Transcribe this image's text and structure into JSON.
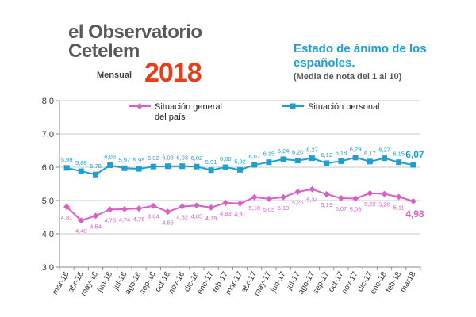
{
  "brand": {
    "line1": "el Observatorio",
    "line2": "Cetelem",
    "edition": "Mensual",
    "year": "2018",
    "colors": {
      "text": "#595959",
      "year": "#e2401c"
    }
  },
  "chart_data": {
    "type": "line",
    "title": "Estado de ánimo de los españoles.",
    "subtitle": "(Media de nota del 1 al 10)",
    "categories": [
      "mar-16",
      "abr-16",
      "may-16",
      "jun-16",
      "jul-16",
      "ago-16",
      "sep-16",
      "oct-16",
      "nov-16",
      "dic-16",
      "ene-17",
      "feb-17",
      "mar-17",
      "abr-17",
      "may-17",
      "jun-17",
      "jul-17",
      "ago-17",
      "sep-17",
      "oct-17",
      "nov-17",
      "dic-17",
      "ene-18",
      "feb-18",
      "mar18"
    ],
    "ylim": [
      3.0,
      8.0
    ],
    "yticks": [
      "3,0",
      "4,0",
      "5,0",
      "6,0",
      "7,0",
      "8,0"
    ],
    "grid": true,
    "series": [
      {
        "name": "Situación general del país",
        "name_lines": [
          "Situación general",
          "del país"
        ],
        "color": "#d95fc8",
        "marker": "diamond",
        "values": [
          4.81,
          4.4,
          4.54,
          4.73,
          4.74,
          4.76,
          4.84,
          4.66,
          4.82,
          4.85,
          4.79,
          4.93,
          4.91,
          5.1,
          5.05,
          5.1,
          5.26,
          5.34,
          5.19,
          5.07,
          5.06,
          5.22,
          5.2,
          5.11,
          4.98
        ],
        "labels": [
          "4,81",
          "4,40",
          "4,54",
          "4,73",
          "4,74",
          "4,76",
          "4,84",
          "4,66",
          "4,82",
          "4,85",
          "4,79",
          "4,93",
          "4,91",
          "5,10",
          "5,05",
          "5,10",
          "5,26",
          "5,34",
          "5,19",
          "5,07",
          "5,06",
          "5,22",
          "5,20",
          "5,11",
          "4,98"
        ]
      },
      {
        "name": "Situación personal",
        "name_lines": [
          "Situación personal"
        ],
        "color": "#1e9fd0",
        "marker": "square",
        "values": [
          5.98,
          5.88,
          5.78,
          6.06,
          5.97,
          5.95,
          6.02,
          6.03,
          6.03,
          6.02,
          5.91,
          6.0,
          5.92,
          6.07,
          6.15,
          6.24,
          6.2,
          6.27,
          6.12,
          6.18,
          6.29,
          6.17,
          6.27,
          6.15,
          6.07
        ],
        "labels": [
          "5,98",
          "5,88",
          "5,78",
          "6,06",
          "5,97",
          "5,95",
          "6,02",
          "6,03",
          "6,03",
          "6,02",
          "5,91",
          "6,00",
          "5,92",
          "6,07",
          "6,15",
          "6,24",
          "6,20",
          "6,27",
          "6,12",
          "6,18",
          "6,29",
          "6,17",
          "6,27",
          "6,15",
          "6,07"
        ]
      }
    ]
  }
}
